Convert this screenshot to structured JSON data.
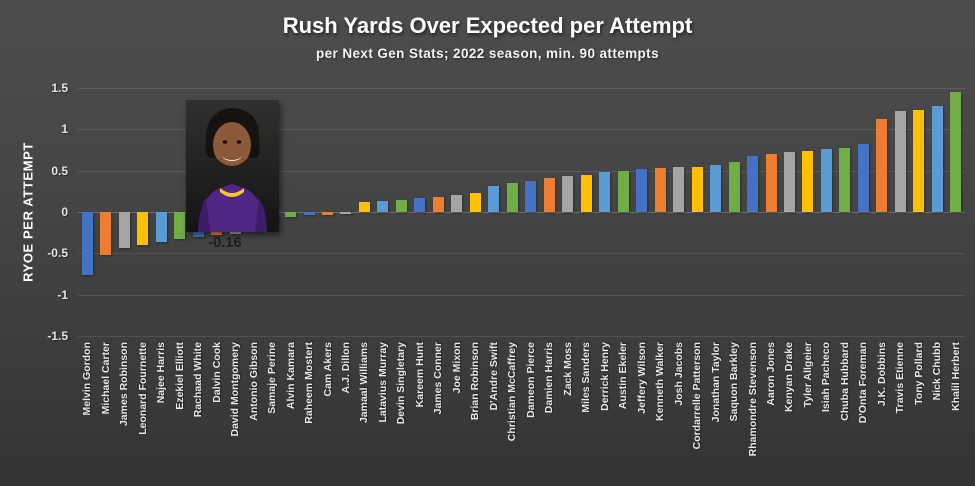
{
  "title": "Rush Yards Over Expected per Attempt",
  "subtitle": "per Next Gen Stats; 2022 season, min. 90 attempts",
  "ylabel": "RYOE PER ATTEMPT",
  "chart_data": {
    "type": "bar",
    "title": "Rush Yards Over Expected per Attempt",
    "subtitle": "per Next Gen Stats; 2022 season, min. 90 attempts",
    "xlabel": "",
    "ylabel": "RYOE PER ATTEMPT",
    "ylim": [
      -1.5,
      1.5
    ],
    "yticks": [
      1.5,
      1,
      0.5,
      0,
      -0.5,
      -1,
      -1.5
    ],
    "ytick_labels": [
      "1.5",
      "1",
      "0.5",
      "0",
      "-0.5",
      "-1",
      "-1.5"
    ],
    "grid": true,
    "legend": false,
    "sorted": "ascending",
    "palette_cycle": [
      "#4472C4",
      "#ED7D31",
      "#A5A5A5",
      "#FFC000",
      "#5B9BD5",
      "#70AD47"
    ],
    "annotation": {
      "text": "-0.16",
      "note": "value label shown under inset player photo"
    },
    "categories": [
      "Melvin Gordon",
      "Michael Carter",
      "James Robinson",
      "Leonard Fournette",
      "Najee Harris",
      "Ezekiel Elliott",
      "Rachaad White",
      "Dalvin Cook",
      "David Montgomery",
      "Antonio Gibson",
      "Samaje Perine",
      "Alvin Kamara",
      "Raheem Mostert",
      "Cam Akers",
      "A.J. Dillon",
      "Jamaal Williams",
      "Latavius Murray",
      "Devin Singletary",
      "Kareem Hunt",
      "James Conner",
      "Joe Mixon",
      "Brian Robinson",
      "D'Andre Swift",
      "Christian McCaffrey",
      "Dameon Pierce",
      "Damien Harris",
      "Zack Moss",
      "Miles Sanders",
      "Derrick Henry",
      "Austin Ekeler",
      "Jeffery Wilson",
      "Kenneth Walker",
      "Josh Jacobs",
      "Cordarrelle Patterson",
      "Jonathan Taylor",
      "Saquon Barkley",
      "Rhamondre Stevenson",
      "Aaron Jones",
      "Kenyan Drake",
      "Tyler Allgeier",
      "Isiah Pacheco",
      "Chuba Hubbard",
      "D'Onta Foreman",
      "J.K. Dobbins",
      "Travis Etienne",
      "Tony Pollard",
      "Nick Chubb",
      "Khalil Herbert"
    ],
    "values": [
      -0.76,
      -0.52,
      -0.43,
      -0.4,
      -0.36,
      -0.33,
      -0.3,
      -0.28,
      -0.26,
      -0.23,
      -0.16,
      -0.06,
      -0.04,
      -0.03,
      -0.02,
      0.12,
      0.13,
      0.15,
      0.17,
      0.18,
      0.21,
      0.23,
      0.32,
      0.35,
      0.38,
      0.41,
      0.44,
      0.45,
      0.48,
      0.5,
      0.52,
      0.53,
      0.55,
      0.55,
      0.57,
      0.6,
      0.68,
      0.7,
      0.73,
      0.74,
      0.76,
      0.78,
      0.82,
      1.12,
      1.22,
      1.23,
      1.28,
      1.45
    ]
  },
  "photo": {
    "description": "inset headshot of running back in purple jersey"
  },
  "colors": {
    "background_top": "#4d4d4d",
    "background_bottom": "#333333",
    "text": "#ffffff",
    "tick_text": "#e2e2e2",
    "annotation_text": "#1d1d1d"
  }
}
